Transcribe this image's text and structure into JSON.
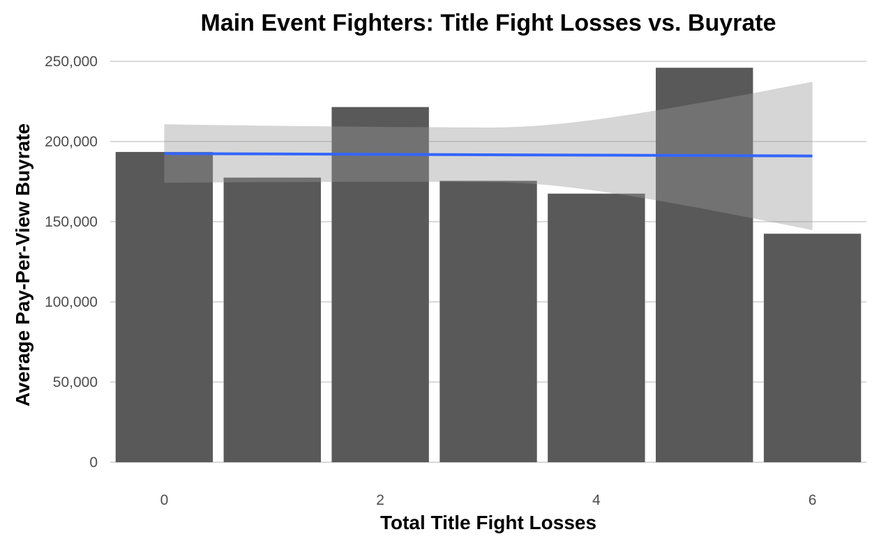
{
  "chart_data": {
    "type": "bar",
    "title": "Main Event Fighters: Title Fight Losses vs. Buyrate",
    "xlabel": "Total Title Fight Losses",
    "ylabel": "Average Pay-Per-View Buyrate",
    "x": [
      0,
      1,
      2,
      3,
      4,
      5,
      6
    ],
    "values": [
      193500,
      177500,
      221500,
      175500,
      167500,
      246000,
      142500
    ],
    "xlim": [
      -0.5,
      6.5
    ],
    "ylim": [
      0,
      250000
    ],
    "x_ticks": [
      0,
      2,
      4,
      6
    ],
    "x_tick_labels": [
      "0",
      "2",
      "4",
      "6"
    ],
    "y_ticks": [
      0,
      50000,
      100000,
      150000,
      200000,
      250000
    ],
    "y_tick_labels": [
      "0",
      "50,000",
      "100,000",
      "150,000",
      "200,000",
      "250,000"
    ],
    "trend": {
      "type": "linear",
      "x_range": [
        0,
        6
      ],
      "y_start": 192500,
      "y_end": 191000,
      "ci_lower": [
        174000,
        144500
      ],
      "ci_upper": [
        210500,
        237000
      ]
    },
    "grid": true,
    "legend": "none",
    "colors": {
      "bar": "#595959",
      "trend_line": "#3366ff",
      "ribbon": "#999999"
    }
  }
}
